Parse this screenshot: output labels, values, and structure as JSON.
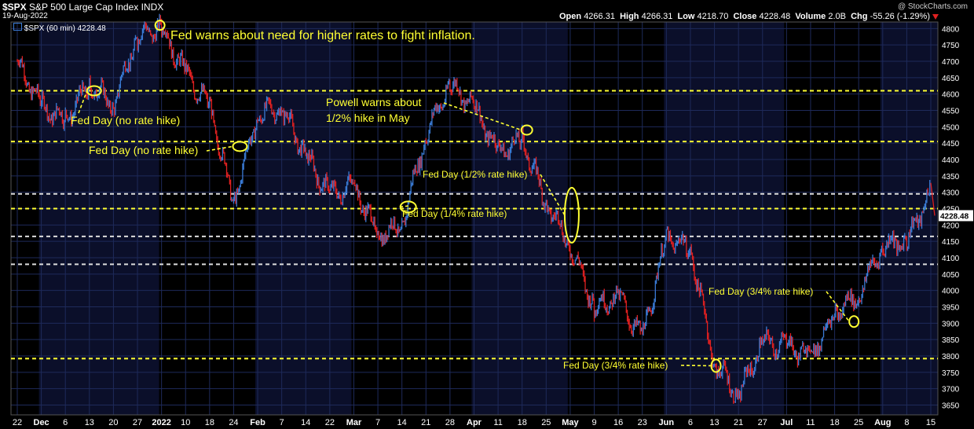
{
  "header": {
    "symbol": "$SPX",
    "name": "S&P 500 Large Cap Index",
    "exchange": "INDX",
    "date": "19-Aug-2022",
    "watermark": "@ StockCharts.com",
    "legend": "$SPX (60 min) 4228.48",
    "ohlc": {
      "open_label": "Open",
      "open": "4266.31",
      "high_label": "High",
      "high": "4266.31",
      "low_label": "Low",
      "low": "4218.70",
      "close_label": "Close",
      "close": "4228.48",
      "volume_label": "Volume",
      "volume": "2.0B",
      "chg_label": "Chg",
      "chg": "-55.26 (-1.29%)"
    },
    "last_price_tag": "4228.48"
  },
  "colors": {
    "up": "#3a7bd5",
    "down": "#e02020",
    "yellow_line": "#ffff33",
    "white_line": "#dddddd",
    "annotation": "#ffff33",
    "grid": "#1e2a5a",
    "band_a": "#000000",
    "band_b": "#0b0f2a"
  },
  "chart_data": {
    "type": "line",
    "title": "$SPX S&P 500 Large Cap Index INDX",
    "series_name": "$SPX (60 min)",
    "xlabel": "",
    "ylabel": "",
    "ylim": [
      3620,
      4820
    ],
    "x_tick_labels": [
      "22",
      "Dec",
      "6",
      "13",
      "20",
      "27",
      "2022",
      "10",
      "18",
      "24",
      "Feb",
      "7",
      "14",
      "22",
      "Mar",
      "7",
      "14",
      "21",
      "28",
      "Apr",
      "11",
      "18",
      "25",
      "May",
      "9",
      "16",
      "23",
      "Jun",
      "6",
      "13",
      "21",
      "27",
      "Jul",
      "11",
      "18",
      "25",
      "Aug",
      "8",
      "15"
    ],
    "y_ticks": [
      3650,
      3700,
      3750,
      3800,
      3850,
      3900,
      3950,
      4000,
      4050,
      4100,
      4150,
      4200,
      4250,
      4300,
      4350,
      4400,
      4450,
      4500,
      4550,
      4600,
      4650,
      4700,
      4750,
      4800
    ],
    "key_points": [
      {
        "t": "22",
        "v": 4700
      },
      {
        "t": "Dec",
        "v": 4560
      },
      {
        "t": "6",
        "v": 4520
      },
      {
        "t": "13",
        "v": 4630
      },
      {
        "t": "20",
        "v": 4570
      },
      {
        "t": "27",
        "v": 4780
      },
      {
        "t": "2022",
        "v": 4800
      },
      {
        "t": "10",
        "v": 4660
      },
      {
        "t": "18",
        "v": 4560
      },
      {
        "t": "24",
        "v": 4270
      },
      {
        "t": "Feb",
        "v": 4540
      },
      {
        "t": "7",
        "v": 4560
      },
      {
        "t": "14",
        "v": 4410
      },
      {
        "t": "22",
        "v": 4290
      },
      {
        "t": "Mar",
        "v": 4320
      },
      {
        "t": "7",
        "v": 4170
      },
      {
        "t": "14",
        "v": 4200
      },
      {
        "t": "21",
        "v": 4480
      },
      {
        "t": "28",
        "v": 4630
      },
      {
        "t": "Apr",
        "v": 4560
      },
      {
        "t": "11",
        "v": 4420
      },
      {
        "t": "18",
        "v": 4460
      },
      {
        "t": "25",
        "v": 4270
      },
      {
        "t": "May",
        "v": 4140
      },
      {
        "t": "9",
        "v": 3950
      },
      {
        "t": "16",
        "v": 3980
      },
      {
        "t": "23",
        "v": 3850
      },
      {
        "t": "Jun",
        "v": 4160
      },
      {
        "t": "6",
        "v": 4130
      },
      {
        "t": "13",
        "v": 3780
      },
      {
        "t": "21",
        "v": 3680
      },
      {
        "t": "27",
        "v": 3840
      },
      {
        "t": "Jul",
        "v": 3830
      },
      {
        "t": "11",
        "v": 3800
      },
      {
        "t": "18",
        "v": 3930
      },
      {
        "t": "25",
        "v": 3990
      },
      {
        "t": "Aug",
        "v": 4140
      },
      {
        "t": "8",
        "v": 4150
      },
      {
        "t": "15",
        "v": 4300
      }
    ],
    "last_value": 4228.48,
    "horizontal_lines": [
      {
        "value": 4610,
        "style": "yellow-dashed"
      },
      {
        "value": 4455,
        "style": "yellow-dashed"
      },
      {
        "value": 4295,
        "style": "white-dashed"
      },
      {
        "value": 4250,
        "style": "yellow-dashed"
      },
      {
        "value": 4165,
        "style": "white-dashed"
      },
      {
        "value": 4080,
        "style": "white-dashed"
      },
      {
        "value": 3792,
        "style": "yellow-dashed"
      }
    ],
    "annotations": [
      {
        "text": "Fed warns about need for higher rates to fight inflation.",
        "size": "large",
        "target_t": "2022",
        "target_v": 4810
      },
      {
        "text": "Fed Day (no rate hike)",
        "size": "medium",
        "target_t": "13",
        "target_v": 4610
      },
      {
        "text": "Fed Day (no rate hike)",
        "size": "medium",
        "target_t": "24",
        "target_v": 4440
      },
      {
        "text": "Powell warns about",
        "size": "medium",
        "target_t": "18",
        "target_v": 4490
      },
      {
        "text": "1/2% hike in May",
        "size": "medium",
        "target_t": "18",
        "target_v": 4490
      },
      {
        "text": "Fed Day (1/2% rate hike)",
        "size": "small",
        "target_t": "May",
        "target_v": 4230
      },
      {
        "text": "Fed Day (1/4% rate hike)",
        "size": "small",
        "target_t": "14",
        "target_v": 4255
      },
      {
        "text": "Fed Day (3/4% rate hike)",
        "size": "small",
        "target_t": "25",
        "target_v": 3905
      },
      {
        "text": "Fed Day (3/4% rate hike)",
        "size": "small",
        "target_t": "13",
        "target_v": 3770
      }
    ]
  }
}
